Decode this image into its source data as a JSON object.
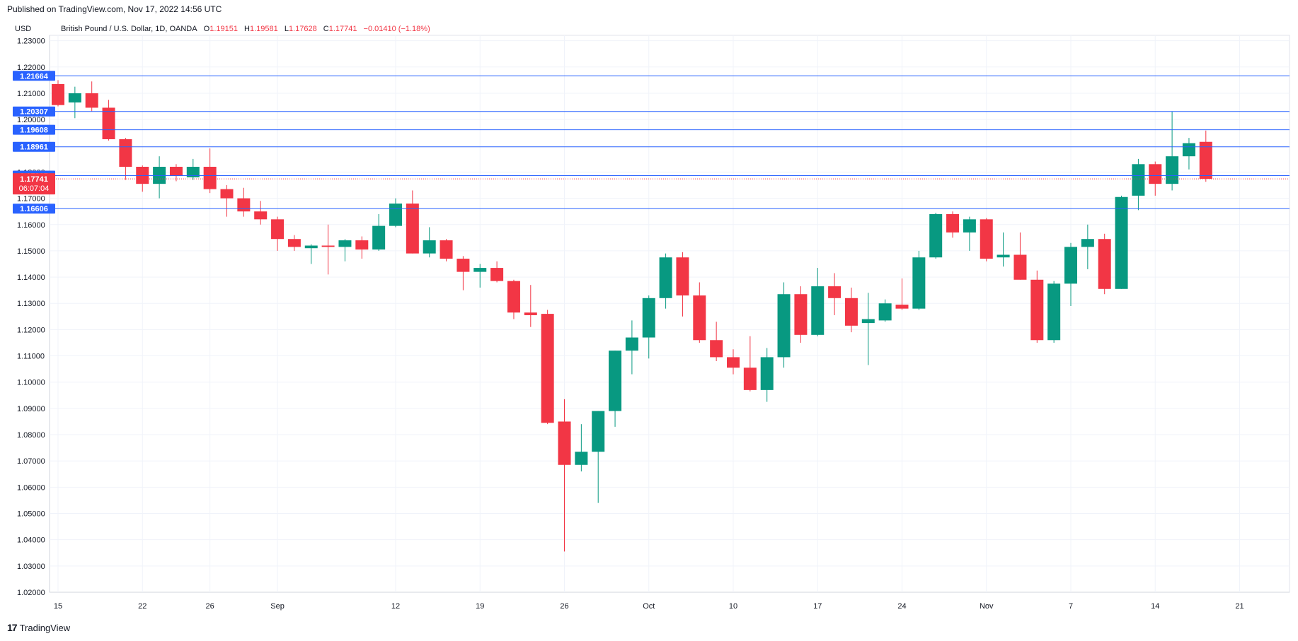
{
  "header": {
    "published": "Published on TradingView.com, Nov 17, 2022 14:56 UTC",
    "currency": "USD"
  },
  "legend": {
    "symbol": "British Pound / U.S. Dollar, 1D, OANDA",
    "o_label": "O",
    "o_value": "1.19151",
    "h_label": "H",
    "h_value": "1.19581",
    "l_label": "L",
    "l_value": "1.17628",
    "c_label": "C",
    "c_value": "1.17741",
    "change": "−0.01410 (−1.18%)"
  },
  "brand": {
    "logo": "17",
    "name": "TradingView"
  },
  "colors": {
    "up": "#089981",
    "down": "#f23645",
    "level": "#2962ff",
    "grid": "#f0f3fa",
    "axis_text": "#131722"
  },
  "chart_data": {
    "type": "candlestick",
    "ylim": [
      1.02,
      1.23
    ],
    "y_ticks": [
      "1.02000",
      "1.03000",
      "1.04000",
      "1.05000",
      "1.06000",
      "1.07000",
      "1.08000",
      "1.09000",
      "1.10000",
      "1.11000",
      "1.12000",
      "1.13000",
      "1.14000",
      "1.15000",
      "1.16000",
      "1.17000",
      "1.18000",
      "1.19000",
      "1.20000",
      "1.21000",
      "1.22000",
      "1.23000"
    ],
    "x_ticks": [
      {
        "label": "15",
        "day": 0
      },
      {
        "label": "22",
        "day": 5
      },
      {
        "label": "26",
        "day": 9
      },
      {
        "label": "Sep",
        "day": 13
      },
      {
        "label": "12",
        "day": 20
      },
      {
        "label": "19",
        "day": 25
      },
      {
        "label": "26",
        "day": 30
      },
      {
        "label": "Oct",
        "day": 35
      },
      {
        "label": "10",
        "day": 40
      },
      {
        "label": "17",
        "day": 45
      },
      {
        "label": "24",
        "day": 50
      },
      {
        "label": "Nov",
        "day": 55
      },
      {
        "label": "7",
        "day": 60
      },
      {
        "label": "14",
        "day": 65
      },
      {
        "label": "21",
        "day": 70
      }
    ],
    "levels": [
      "1.21664",
      "1.20307",
      "1.19608",
      "1.18961",
      "1.17865",
      "1.16606"
    ],
    "last_price": "1.17741",
    "countdown": "06:07:04",
    "candles": [
      {
        "o": 1.2135,
        "h": 1.215,
        "l": 1.205,
        "c": 1.2055
      },
      {
        "o": 1.2065,
        "h": 1.2125,
        "l": 1.2005,
        "c": 1.21
      },
      {
        "o": 1.21,
        "h": 1.2145,
        "l": 1.203,
        "c": 1.2045
      },
      {
        "o": 1.2045,
        "h": 1.2075,
        "l": 1.192,
        "c": 1.1925
      },
      {
        "o": 1.1925,
        "h": 1.193,
        "l": 1.177,
        "c": 1.182
      },
      {
        "o": 1.182,
        "h": 1.1825,
        "l": 1.1725,
        "c": 1.1755
      },
      {
        "o": 1.1755,
        "h": 1.186,
        "l": 1.17,
        "c": 1.182
      },
      {
        "o": 1.182,
        "h": 1.183,
        "l": 1.1765,
        "c": 1.1785
      },
      {
        "o": 1.178,
        "h": 1.185,
        "l": 1.177,
        "c": 1.182
      },
      {
        "o": 1.182,
        "h": 1.189,
        "l": 1.172,
        "c": 1.1735
      },
      {
        "o": 1.1735,
        "h": 1.175,
        "l": 1.163,
        "c": 1.17
      },
      {
        "o": 1.17,
        "h": 1.174,
        "l": 1.163,
        "c": 1.165
      },
      {
        "o": 1.165,
        "h": 1.169,
        "l": 1.16,
        "c": 1.162
      },
      {
        "o": 1.162,
        "h": 1.163,
        "l": 1.15,
        "c": 1.1545
      },
      {
        "o": 1.1545,
        "h": 1.156,
        "l": 1.15,
        "c": 1.1515
      },
      {
        "o": 1.151,
        "h": 1.1525,
        "l": 1.145,
        "c": 1.152
      },
      {
        "o": 1.152,
        "h": 1.16,
        "l": 1.141,
        "c": 1.1515
      },
      {
        "o": 1.1515,
        "h": 1.1545,
        "l": 1.146,
        "c": 1.154
      },
      {
        "o": 1.154,
        "h": 1.1555,
        "l": 1.147,
        "c": 1.1505
      },
      {
        "o": 1.1505,
        "h": 1.164,
        "l": 1.15,
        "c": 1.1595
      },
      {
        "o": 1.1595,
        "h": 1.17,
        "l": 1.159,
        "c": 1.168
      },
      {
        "o": 1.168,
        "h": 1.173,
        "l": 1.149,
        "c": 1.149
      },
      {
        "o": 1.149,
        "h": 1.159,
        "l": 1.1475,
        "c": 1.154
      },
      {
        "o": 1.154,
        "h": 1.1545,
        "l": 1.146,
        "c": 1.147
      },
      {
        "o": 1.147,
        "h": 1.148,
        "l": 1.135,
        "c": 1.142
      },
      {
        "o": 1.142,
        "h": 1.145,
        "l": 1.136,
        "c": 1.1435
      },
      {
        "o": 1.1435,
        "h": 1.146,
        "l": 1.138,
        "c": 1.1385
      },
      {
        "o": 1.1385,
        "h": 1.139,
        "l": 1.124,
        "c": 1.1265
      },
      {
        "o": 1.1265,
        "h": 1.137,
        "l": 1.121,
        "c": 1.1255
      },
      {
        "o": 1.126,
        "h": 1.1275,
        "l": 1.084,
        "c": 1.0845
      },
      {
        "o": 1.085,
        "h": 1.0935,
        "l": 1.0355,
        "c": 1.0685
      },
      {
        "o": 1.0685,
        "h": 1.084,
        "l": 1.066,
        "c": 1.0735
      },
      {
        "o": 1.0735,
        "h": 1.089,
        "l": 1.054,
        "c": 1.089
      },
      {
        "o": 1.089,
        "h": 1.112,
        "l": 1.083,
        "c": 1.112
      },
      {
        "o": 1.112,
        "h": 1.1235,
        "l": 1.103,
        "c": 1.117
      },
      {
        "o": 1.117,
        "h": 1.133,
        "l": 1.109,
        "c": 1.132
      },
      {
        "o": 1.132,
        "h": 1.149,
        "l": 1.128,
        "c": 1.1475
      },
      {
        "o": 1.1475,
        "h": 1.1495,
        "l": 1.125,
        "c": 1.133
      },
      {
        "o": 1.133,
        "h": 1.138,
        "l": 1.115,
        "c": 1.116
      },
      {
        "o": 1.116,
        "h": 1.123,
        "l": 1.108,
        "c": 1.1095
      },
      {
        "o": 1.1095,
        "h": 1.1125,
        "l": 1.103,
        "c": 1.1055
      },
      {
        "o": 1.1055,
        "h": 1.1175,
        "l": 1.0965,
        "c": 1.097
      },
      {
        "o": 1.097,
        "h": 1.113,
        "l": 1.0925,
        "c": 1.1095
      },
      {
        "o": 1.1095,
        "h": 1.138,
        "l": 1.1055,
        "c": 1.1335
      },
      {
        "o": 1.1335,
        "h": 1.1365,
        "l": 1.115,
        "c": 1.118
      },
      {
        "o": 1.118,
        "h": 1.1435,
        "l": 1.1175,
        "c": 1.1365
      },
      {
        "o": 1.1365,
        "h": 1.1415,
        "l": 1.1255,
        "c": 1.132
      },
      {
        "o": 1.132,
        "h": 1.136,
        "l": 1.119,
        "c": 1.1215
      },
      {
        "o": 1.1225,
        "h": 1.134,
        "l": 1.1065,
        "c": 1.124
      },
      {
        "o": 1.1235,
        "h": 1.1315,
        "l": 1.123,
        "c": 1.13
      },
      {
        "o": 1.1295,
        "h": 1.1395,
        "l": 1.1275,
        "c": 1.128
      },
      {
        "o": 1.128,
        "h": 1.15,
        "l": 1.1275,
        "c": 1.1475
      },
      {
        "o": 1.1475,
        "h": 1.1645,
        "l": 1.147,
        "c": 1.164
      },
      {
        "o": 1.164,
        "h": 1.165,
        "l": 1.155,
        "c": 1.157
      },
      {
        "o": 1.157,
        "h": 1.163,
        "l": 1.15,
        "c": 1.162
      },
      {
        "o": 1.162,
        "h": 1.1625,
        "l": 1.146,
        "c": 1.147
      },
      {
        "o": 1.1475,
        "h": 1.157,
        "l": 1.144,
        "c": 1.1485
      },
      {
        "o": 1.1485,
        "h": 1.157,
        "l": 1.139,
        "c": 1.139
      },
      {
        "o": 1.139,
        "h": 1.1425,
        "l": 1.115,
        "c": 1.116
      },
      {
        "o": 1.116,
        "h": 1.1385,
        "l": 1.115,
        "c": 1.1375
      },
      {
        "o": 1.1375,
        "h": 1.153,
        "l": 1.129,
        "c": 1.1515
      },
      {
        "o": 1.1515,
        "h": 1.16,
        "l": 1.143,
        "c": 1.1545
      },
      {
        "o": 1.1545,
        "h": 1.1565,
        "l": 1.1335,
        "c": 1.1355
      },
      {
        "o": 1.1355,
        "h": 1.171,
        "l": 1.1355,
        "c": 1.1705
      },
      {
        "o": 1.171,
        "h": 1.185,
        "l": 1.1655,
        "c": 1.183
      },
      {
        "o": 1.183,
        "h": 1.184,
        "l": 1.171,
        "c": 1.1755
      },
      {
        "o": 1.1755,
        "h": 1.203,
        "l": 1.173,
        "c": 1.186
      },
      {
        "o": 1.186,
        "h": 1.193,
        "l": 1.181,
        "c": 1.191
      },
      {
        "o": 1.1915,
        "h": 1.1958,
        "l": 1.1763,
        "c": 1.1774
      }
    ]
  }
}
